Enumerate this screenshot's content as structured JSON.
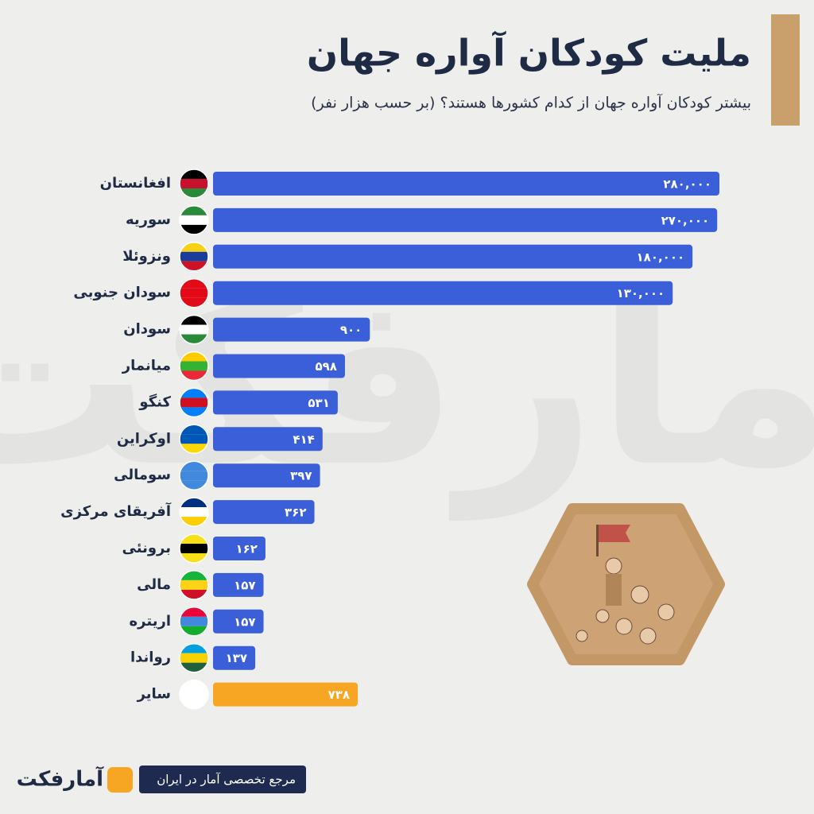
{
  "chart_data": {
    "type": "bar",
    "orientation": "horizontal",
    "log_scale": true,
    "title": "ملیت کودکان آواره جهان",
    "subtitle": "بیشتر کودکان آواره جهان از کدام کشورها هستند؟ (بر حسب هزار نفر)",
    "categories": [
      "افغانستان",
      "سوریه",
      "ونزوئلا",
      "سودان جنوبی",
      "سودان",
      "میانمار",
      "کنگو",
      "اوکراین",
      "سومالی",
      "آفریقای مرکزی",
      "برونئی",
      "مالی",
      "اریتره",
      "رواندا",
      "سایر"
    ],
    "values": [
      280000,
      270000,
      180000,
      130000,
      900,
      598,
      531,
      414,
      397,
      362,
      162,
      157,
      157,
      137,
      738
    ],
    "value_labels": [
      "۲۸۰,۰۰۰",
      "۲۷۰,۰۰۰",
      "۱۸۰,۰۰۰",
      "۱۳۰,۰۰۰",
      "۹۰۰",
      "۵۹۸",
      "۵۳۱",
      "۴۱۴",
      "۳۹۷",
      "۳۶۲",
      "۱۶۲",
      "۱۵۷",
      "۱۵۷",
      "۱۳۷",
      "۷۳۸"
    ],
    "colors": [
      "#3a5fd8",
      "#3a5fd8",
      "#3a5fd8",
      "#3a5fd8",
      "#3a5fd8",
      "#3a5fd8",
      "#3a5fd8",
      "#3a5fd8",
      "#3a5fd8",
      "#3a5fd8",
      "#3a5fd8",
      "#3a5fd8",
      "#3a5fd8",
      "#3a5fd8",
      "#f6a623"
    ],
    "footer": "مرجع تخصصی آمار در ایران",
    "brand": "آمارفکت"
  }
}
